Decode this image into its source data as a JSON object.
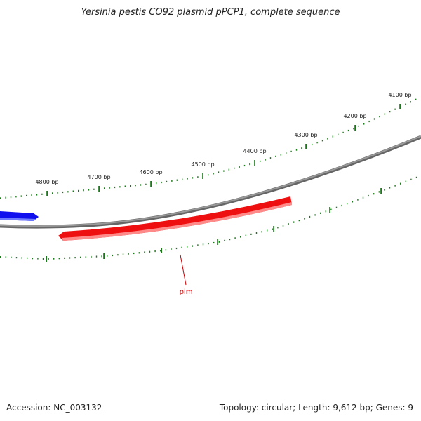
{
  "title": "Yersinia pestis CO92 plasmid pPCP1, complete sequence",
  "accession": "Accession: NC_003132",
  "topology_info": "Topology: circular; Length: 9,612 bp; Genes: 9",
  "outer_ruler": {
    "labels": [
      "4800 bp",
      "4700 bp",
      "4600 bp",
      "4500 bp",
      "4400 bp",
      "4300 bp",
      "4200 bp",
      "4100 bp"
    ],
    "color": "#1a7a1a"
  },
  "genes": [
    {
      "name": "",
      "strand": "forward",
      "color": "#1010ee"
    },
    {
      "name": "pim",
      "strand": "reverse",
      "color": "#ee1010"
    }
  ],
  "backbone_color": "#888888",
  "label_color": "#cc0000"
}
